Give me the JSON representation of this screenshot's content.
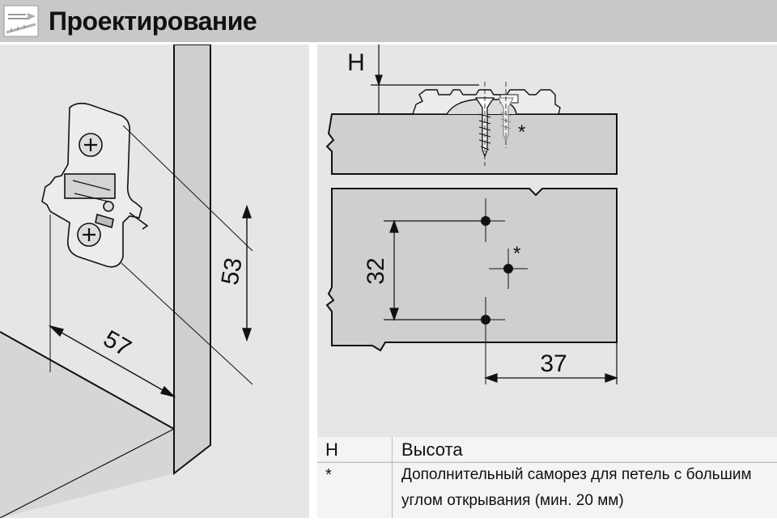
{
  "header": {
    "title": "Проектирование",
    "icon": "ruler-pencil-icon",
    "background": "#c8c8c8"
  },
  "left_diagram": {
    "dim_height": "53",
    "dim_width": "57"
  },
  "right_diagram": {
    "h_label": "H",
    "asterisk": "*",
    "dim_spacing": "32",
    "dim_offset": "37"
  },
  "legend": {
    "rows": [
      {
        "symbol": "H",
        "text": "Высота"
      },
      {
        "symbol": "*",
        "text": "Дополнительный саморез для петель с большим"
      },
      {
        "symbol": "",
        "text": "углом открывания (мин. 20 мм)"
      }
    ]
  },
  "colors": {
    "panel": "#e6e6e6",
    "line": "#111111"
  }
}
